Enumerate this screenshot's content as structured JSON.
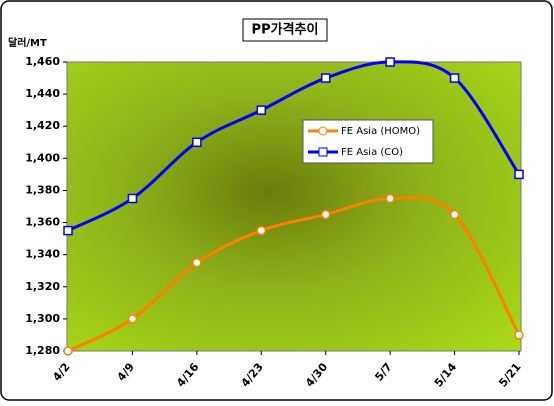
{
  "chart_data": {
    "type": "line",
    "title": "PP가격추이",
    "y_label": "달러/MT",
    "categories": [
      "4/2",
      "4/9",
      "4/16",
      "4/23",
      "4/30",
      "5/7",
      "5/14",
      "5/21"
    ],
    "series": [
      {
        "name": "FE Asia (HOMO)",
        "color": "#ff7f00",
        "marker": "circle",
        "values": [
          1280,
          1300,
          1335,
          1355,
          1365,
          1375,
          1365,
          1290
        ]
      },
      {
        "name": "FE Asia (CO)",
        "color": "#0000ff",
        "marker": "square",
        "values": [
          1355,
          1375,
          1410,
          1430,
          1450,
          1460,
          1450,
          1390
        ]
      }
    ],
    "ylim": [
      1280,
      1460
    ],
    "yticks": [
      {
        "value": 1280,
        "label": "1,280"
      },
      {
        "value": 1300,
        "label": "1,300"
      },
      {
        "value": 1320,
        "label": "1,320"
      },
      {
        "value": 1340,
        "label": "1,340"
      },
      {
        "value": 1360,
        "label": "1,360"
      },
      {
        "value": 1380,
        "label": "1,380"
      },
      {
        "value": 1400,
        "label": "1,400"
      },
      {
        "value": 1420,
        "label": "1,420"
      },
      {
        "value": 1440,
        "label": "1,440"
      },
      {
        "value": 1460,
        "label": "1,460"
      }
    ],
    "smooth": true
  }
}
